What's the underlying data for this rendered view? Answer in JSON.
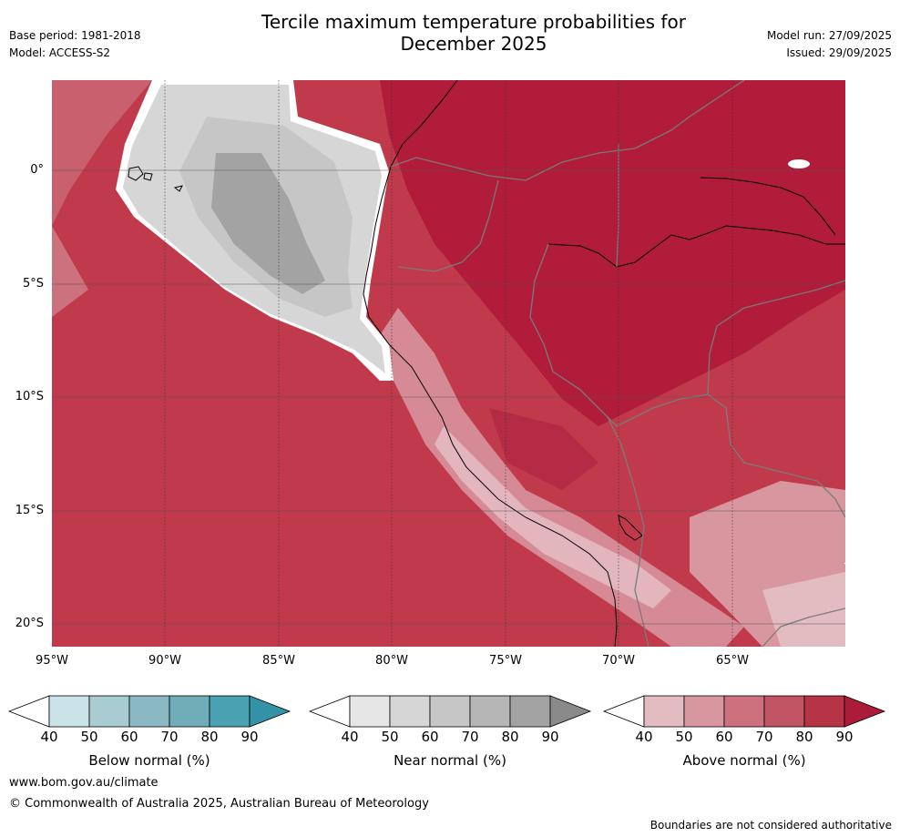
{
  "header": {
    "title_line1": "Tercile maximum temperature probabilities for",
    "title_line2": "December 2025",
    "base_period": "Base period: 1981-2018",
    "model": "Model: ACCESS-S2",
    "model_run": "Model run: 27/09/2025",
    "issued": "Issued: 29/09/2025"
  },
  "map": {
    "lat_ticks": [
      "0°",
      "5°S",
      "10°S",
      "15°S",
      "20°S"
    ],
    "lon_ticks": [
      "95°W",
      "90°W",
      "85°W",
      "80°W",
      "75°W",
      "70°W",
      "65°W"
    ],
    "region": "Western South America and adjacent Pacific"
  },
  "legend": {
    "below": {
      "label": "Below normal (%)",
      "ticks": [
        "40",
        "50",
        "60",
        "70",
        "80",
        "90"
      ],
      "colors": [
        "#ffffff",
        "#c9e3e8",
        "#a8ccd2",
        "#8bb9c3",
        "#6fadb8",
        "#4aa1b2",
        "#3392a6"
      ]
    },
    "near": {
      "label": "Near normal (%)",
      "ticks": [
        "40",
        "50",
        "60",
        "70",
        "80",
        "90"
      ],
      "colors": [
        "#ffffff",
        "#e6e6e6",
        "#d6d6d6",
        "#c6c6c6",
        "#b6b6b6",
        "#a3a3a3",
        "#8a8a8a"
      ]
    },
    "above": {
      "label": "Above normal (%)",
      "ticks": [
        "40",
        "50",
        "60",
        "70",
        "80",
        "90"
      ],
      "colors": [
        "#ffffff",
        "#e3bcc1",
        "#d8979f",
        "#cc717d",
        "#c25563",
        "#b73447",
        "#ab1b3a"
      ]
    }
  },
  "footer": {
    "website": "www.bom.gov.au/climate",
    "copyright": "© Commonwealth of Australia 2025, Australian Bureau of Meteorology",
    "disclaimer": "Boundaries are not considered authoritative"
  }
}
